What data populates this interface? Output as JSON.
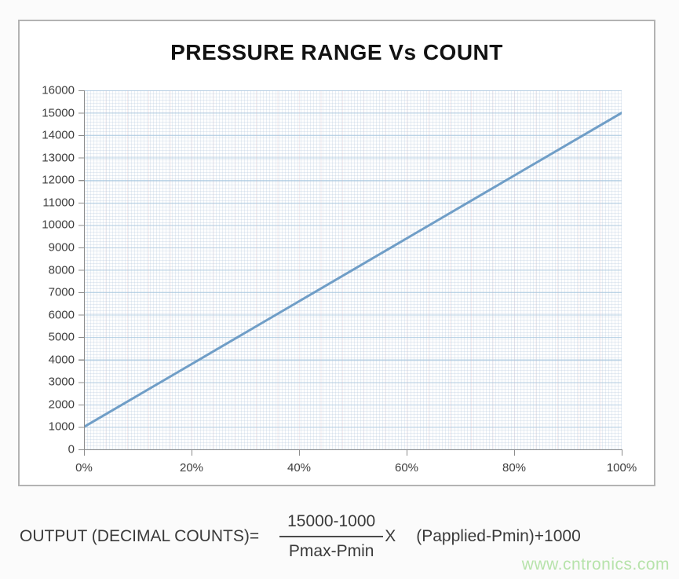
{
  "chart": {
    "title": "PRESSURE RANGE Vs COUNT"
  },
  "chart_data": {
    "type": "line",
    "title": "PRESSURE RANGE Vs COUNT",
    "x": [
      0,
      20,
      40,
      60,
      80,
      100
    ],
    "x_unit": "%",
    "values": [
      1000,
      3800,
      6600,
      9400,
      12200,
      15000
    ],
    "series_note": "single straight line: count = 1000 + 140 * percent",
    "xlabel": "",
    "ylabel": "",
    "xlim": [
      0,
      100
    ],
    "ylim": [
      0,
      16000
    ],
    "y_tick_step": 1000,
    "y_tick_labels": [
      "16000",
      "15000",
      "14000",
      "13000",
      "12000",
      "11000",
      "10000",
      "9000",
      "8000",
      "7000",
      "6000",
      "5000",
      "4000",
      "3000",
      "2000",
      "1000",
      "0"
    ],
    "x_tick_labels": [
      "0%",
      "20%",
      "40%",
      "60%",
      "80%",
      "100%"
    ],
    "grid": "fine graph-paper minor mesh with light blue major horizontal gridlines every 1000",
    "legend": "none",
    "markers": "none"
  },
  "formula": {
    "lhs": "OUTPUT (DECIMAL COUNTS)=",
    "numerator": "15000-1000",
    "denominator": "Pmax-Pmin",
    "operator": "X",
    "rhs": "(Papplied-Pmin)+1000"
  },
  "watermark": "www.cntronics.com",
  "colors": {
    "line": "#6899c4",
    "major_grid": "#b5d5e5",
    "axis": "#8c8c8c",
    "title_text": "#121212",
    "formula_text": "#3a3a3a",
    "watermark": "#b7e3ab"
  }
}
